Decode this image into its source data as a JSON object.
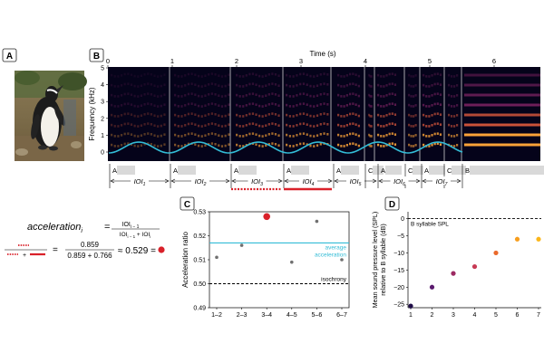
{
  "panels": {
    "a": "A",
    "b": "B",
    "c": "C",
    "d": "D"
  },
  "spectrogram": {
    "time_label": "Time (s)",
    "time_ticks": [
      "0",
      "1",
      "2",
      "3",
      "4",
      "5",
      "6"
    ],
    "freq_label": "Frequency (kHz)",
    "freq_ticks": [
      "0",
      "1",
      "2",
      "3",
      "4",
      "5"
    ],
    "syllables": [
      "A",
      "A",
      "A",
      "A",
      "A",
      "C",
      "A",
      "C",
      "A",
      "C",
      "B"
    ],
    "ioi_labels": [
      "IOI1",
      "IOI2",
      "IOI3",
      "IOI4",
      "IOI5",
      "IOI6",
      "IOI7"
    ],
    "ioi_base": "IOI",
    "ioi_subscripts": [
      "1",
      "2",
      "3",
      "4",
      "5",
      "6",
      "7"
    ]
  },
  "formula": {
    "lhs_word": "acceleration",
    "lhs_sub": "i",
    "equals": "=",
    "num": "IOI",
    "num_sub": "i − 1",
    "den_a": "IOI",
    "den_a_sub": "i − 1",
    "den_plus": "+",
    "den_b": "IOI",
    "den_b_sub": "i",
    "frac2_num": "0.859",
    "frac2_den": "0.859 + 0.766",
    "approx": "≈ 0.529 ="
  },
  "chart_data": [
    {
      "type": "scatter",
      "title": "",
      "ylabel": "Acceleration ratio",
      "xlabel": "",
      "categories": [
        "1–2",
        "2–3",
        "3–4",
        "4–5",
        "5–6",
        "6–7"
      ],
      "values": [
        0.511,
        0.516,
        0.528,
        0.509,
        0.526,
        0.51
      ],
      "highlight_index": 2,
      "ylim": [
        0.49,
        0.53
      ],
      "yticks": [
        "0.49",
        "0.50",
        "0.51",
        "0.52",
        "0.53"
      ],
      "reference_lines": [
        {
          "label": "average acceleration",
          "label_lines": [
            "average",
            "acceleration"
          ],
          "value": 0.517,
          "color": "#33bcd6"
        },
        {
          "label": "isochrony",
          "value": 0.5,
          "color": "#000000"
        }
      ]
    },
    {
      "type": "scatter",
      "title": "",
      "ylabel": "Mean sound pressure level (SPL) relative to B syllable (dB)",
      "ylabel_lines": [
        "Mean sound pressure level (SPL)",
        "relative to B syllable (dB)"
      ],
      "xlabel": "",
      "x": [
        1,
        2,
        3,
        4,
        5,
        6,
        7
      ],
      "values": [
        -25.5,
        -20,
        -16,
        -14,
        -10,
        -6,
        -6
      ],
      "colors": [
        "#1f0c48",
        "#5b1a6e",
        "#9c2a62",
        "#c73a55",
        "#ea6a2c",
        "#f79e1e",
        "#fbb61a"
      ],
      "ylim": [
        -25,
        0
      ],
      "xticks": [
        "1",
        "2",
        "3",
        "4",
        "5",
        "6",
        "7"
      ],
      "yticks": [
        "0",
        "−5",
        "−10",
        "−15",
        "−20",
        "−25"
      ],
      "reference_lines": [
        {
          "label": "B syllable SPL",
          "value": 0,
          "color": "#000000"
        }
      ]
    }
  ]
}
